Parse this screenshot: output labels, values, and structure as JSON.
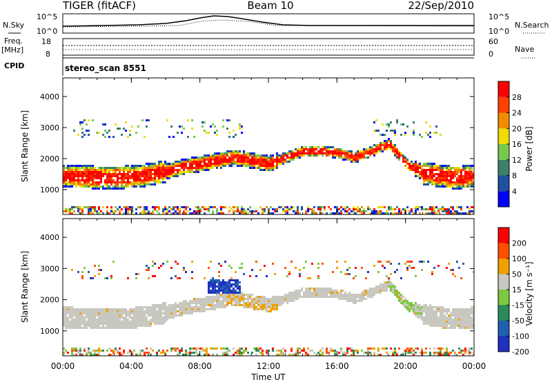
{
  "header": {
    "radar": "TIGER (fitACF)",
    "beam": "Beam 10",
    "date": "22/Sep/2010"
  },
  "noise_panel": {
    "left_label": "N.Sky",
    "right_label": "N.Search",
    "left_ticks": [
      "10^5",
      "10^0"
    ],
    "right_ticks": [
      "10^5",
      "10^0"
    ]
  },
  "freq_panel": {
    "left_label_1": "Freq.",
    "left_label_2": "[MHz]",
    "right_label": "Nave",
    "left_ticks": [
      "18",
      "8"
    ],
    "right_ticks": [
      "60",
      "0"
    ]
  },
  "cpid_panel": {
    "label": "CPID",
    "value": "stereo_scan 8551"
  },
  "chart_data": [
    {
      "type": "heatmap",
      "title": "",
      "ylabel": "Slant Range [km]",
      "xlabel": "",
      "x_ticks": [
        "00:00",
        "04:00",
        "08:00",
        "12:00",
        "16:00",
        "20:00",
        "00:00"
      ],
      "x_range_hours": [
        0,
        24
      ],
      "ylim": [
        200,
        4600
      ],
      "y_ticks": [
        "1000",
        "2000",
        "3000",
        "4000"
      ],
      "colorbar": {
        "label": "Power [dB]",
        "ticks": [
          "4",
          "8",
          "12",
          "16",
          "20",
          "24",
          "28"
        ],
        "colors": [
          "#0000ff",
          "#2050a0",
          "#3c7f6a",
          "#78c850",
          "#f0dc00",
          "#f08c00",
          "#ff4000",
          "#ff0000"
        ]
      },
      "series": [
        {
          "name": "main-band",
          "x_hours": [
            0,
            1,
            2,
            3,
            4,
            5,
            6,
            7,
            8,
            9,
            10,
            11,
            12,
            13,
            14,
            15,
            16,
            17,
            18,
            19,
            20,
            21,
            22,
            23,
            24
          ],
          "y_center_km": [
            1400,
            1380,
            1360,
            1350,
            1380,
            1450,
            1550,
            1700,
            1800,
            1900,
            2000,
            1900,
            1800,
            2000,
            2200,
            2200,
            2150,
            2000,
            2200,
            2450,
            1800,
            1500,
            1400,
            1350,
            1400
          ]
        }
      ]
    },
    {
      "type": "heatmap",
      "title": "",
      "ylabel": "Slant Range [km]",
      "xlabel": "Time UT",
      "x_ticks": [
        "00:00",
        "04:00",
        "08:00",
        "12:00",
        "16:00",
        "20:00",
        "00:00"
      ],
      "x_range_hours": [
        0,
        24
      ],
      "ylim": [
        200,
        4600
      ],
      "y_ticks": [
        "1000",
        "2000",
        "3000",
        "4000"
      ],
      "colorbar": {
        "label": "Velocity [m s⁻¹]",
        "ticks": [
          "200",
          "100",
          "50",
          "15",
          "-15",
          "-50",
          "-100",
          "-200"
        ],
        "colors": [
          "#2030c0",
          "#2060b0",
          "#2a8a5a",
          "#7cc840",
          "#c8c8c0",
          "#f0a000",
          "#ff5000",
          "#ff0000"
        ]
      },
      "note_values": {
        "background_velocity": 0
      }
    }
  ]
}
